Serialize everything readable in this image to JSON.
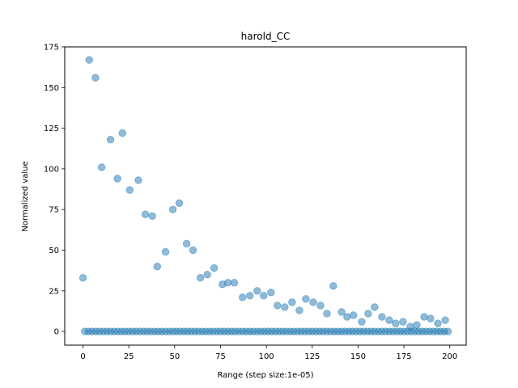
{
  "chart_data": {
    "type": "scatter",
    "title": "harold_CC",
    "xlabel": "Range (step size:1e-05)",
    "ylabel": "Normalized value",
    "xlim": [
      -9.95,
      208.95
    ],
    "ylim": [
      -8.4,
      175
    ],
    "xticks": [
      0,
      25,
      50,
      75,
      100,
      125,
      150,
      175,
      200
    ],
    "yticks": [
      0,
      25,
      50,
      75,
      100,
      125,
      150,
      175
    ],
    "grid": false,
    "marker_color": "#1f77b4",
    "marker_alpha": 0.5,
    "series": [
      {
        "x": [
          0,
          3.4,
          6.8,
          10.2,
          15,
          18.8,
          21.5,
          25.5,
          30.2,
          34,
          37.8,
          40.5,
          45,
          49,
          52.5,
          56.5,
          60,
          64,
          67.8,
          71.5,
          76,
          79,
          82.5,
          87,
          91,
          95,
          98.5,
          102.5,
          106,
          110,
          114,
          118,
          121.5,
          125.5,
          129.5,
          133,
          136.5,
          141,
          144,
          147.5,
          152,
          155.5,
          159,
          163,
          167,
          170.5,
          174.5,
          178.5,
          182,
          186,
          189.5,
          193.5,
          197.5
        ],
        "y": [
          33,
          167,
          156,
          101,
          118,
          94,
          122,
          87,
          93,
          72,
          71,
          40,
          49,
          75,
          79,
          54,
          50,
          33,
          35,
          39,
          29,
          30,
          30,
          21,
          22,
          25,
          22,
          24,
          16,
          15,
          18,
          13,
          20,
          18,
          16,
          11,
          28,
          12,
          9,
          10,
          6,
          11,
          15,
          9,
          7,
          5,
          6,
          3,
          4,
          9,
          8,
          5,
          7
        ]
      },
      {
        "x": [
          1,
          3,
          5,
          7,
          9,
          11,
          13,
          15,
          17,
          19,
          21,
          23,
          25,
          27,
          29,
          31,
          33,
          35,
          37,
          39,
          41,
          43,
          45,
          47,
          49,
          51,
          53,
          55,
          57,
          59,
          61,
          63,
          65,
          67,
          69,
          71,
          73,
          75,
          77,
          79,
          81,
          83,
          85,
          87,
          89,
          91,
          93,
          95,
          97,
          99,
          101,
          103,
          105,
          107,
          109,
          111,
          113,
          115,
          117,
          119,
          121,
          123,
          125,
          127,
          129,
          131,
          133,
          135,
          137,
          139,
          141,
          143,
          145,
          147,
          149,
          151,
          153,
          155,
          157,
          159,
          161,
          163,
          165,
          167,
          169,
          171,
          173,
          175,
          177,
          179,
          181,
          183,
          185,
          187,
          189,
          191,
          193,
          195,
          197,
          199
        ],
        "y": [
          0,
          0,
          0,
          0,
          0,
          0,
          0,
          0,
          0,
          0,
          0,
          0,
          0,
          0,
          0,
          0,
          0,
          0,
          0,
          0,
          0,
          0,
          0,
          0,
          0,
          0,
          0,
          0,
          0,
          0,
          0,
          0,
          0,
          0,
          0,
          0,
          0,
          0,
          0,
          0,
          0,
          0,
          0,
          0,
          0,
          0,
          0,
          0,
          0,
          0,
          0,
          0,
          0,
          0,
          0,
          0,
          0,
          0,
          0,
          0,
          0,
          0,
          0,
          0,
          0,
          0,
          0,
          0,
          0,
          0,
          0,
          0,
          0,
          0,
          0,
          0,
          0,
          0,
          0,
          0,
          0,
          0,
          0,
          0,
          0,
          0,
          0,
          0,
          0,
          0,
          0,
          0,
          0,
          0,
          0,
          0,
          0,
          0,
          0,
          0
        ]
      }
    ]
  }
}
